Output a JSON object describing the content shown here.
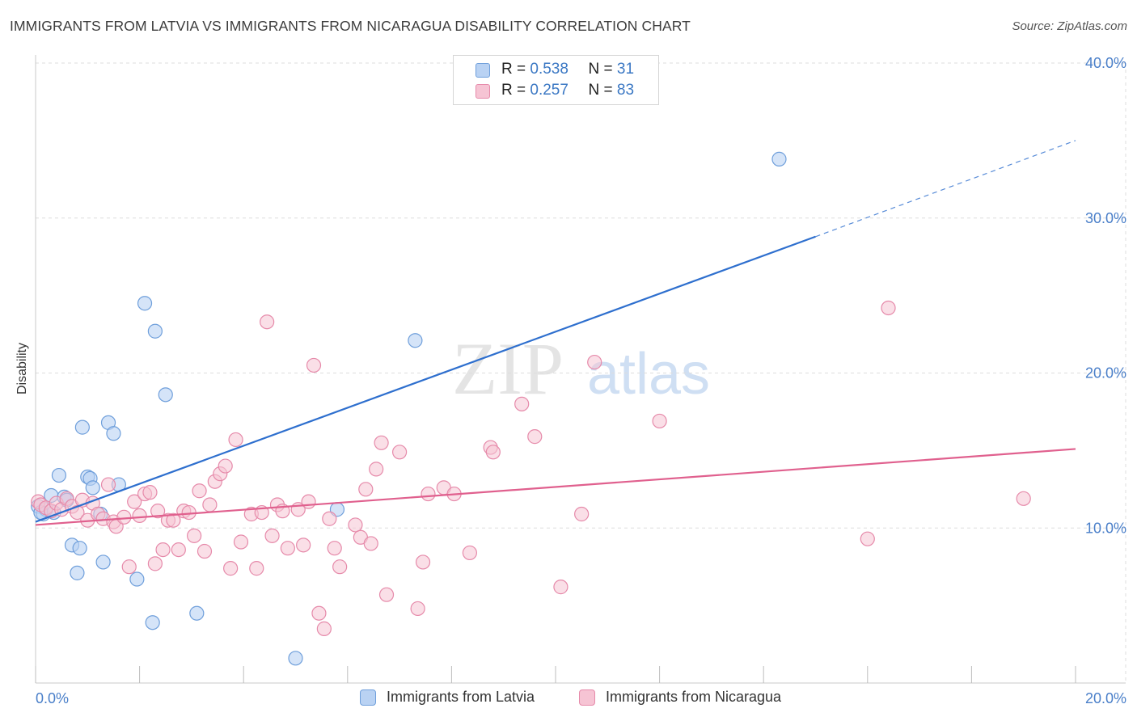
{
  "title": "IMMIGRANTS FROM LATVIA VS IMMIGRANTS FROM NICARAGUA DISABILITY CORRELATION CHART",
  "source": "Source: ZipAtlas.com",
  "watermark": {
    "zip": "ZIP",
    "atlas": "atlas"
  },
  "stats": [
    {
      "r_label": "R =",
      "r_value": "0.538",
      "n_label": "N =",
      "n_value": "31"
    },
    {
      "r_label": "R =",
      "r_value": "0.257",
      "n_label": "N =",
      "n_value": "83"
    }
  ],
  "legend": [
    {
      "label": "Immigrants from Latvia"
    },
    {
      "label": "Immigrants from Nicaragua"
    }
  ],
  "colors": {
    "latvia_fill": "#b9d2f3",
    "latvia_stroke": "#6f9fdb",
    "latvia_line": "#2e6fce",
    "nicaragua_fill": "#f6c4d4",
    "nicaragua_stroke": "#e68aaa",
    "nicaragua_line": "#e0608e",
    "tick_label": "#4a7fc9",
    "grid": "#dddddd"
  },
  "chart_data": {
    "type": "scatter",
    "title": "IMMIGRANTS FROM LATVIA VS IMMIGRANTS FROM NICARAGUA DISABILITY CORRELATION CHART",
    "xlabel": "",
    "ylabel": "Disability",
    "xlim": [
      0,
      20
    ],
    "ylim": [
      0,
      40
    ],
    "x_tick_labels": [
      "0.0%",
      "20.0%"
    ],
    "y_ticks": [
      10,
      20,
      30,
      40
    ],
    "y_tick_labels": [
      "10.0%",
      "20.0%",
      "30.0%",
      "40.0%"
    ],
    "grid": true,
    "series": [
      {
        "name": "Immigrants from Latvia",
        "points": [
          [
            0.05,
            11.4
          ],
          [
            0.15,
            10.9
          ],
          [
            0.2,
            11.2
          ],
          [
            0.3,
            12.1
          ],
          [
            0.35,
            11.0
          ],
          [
            0.45,
            13.4
          ],
          [
            0.55,
            12.0
          ],
          [
            0.6,
            11.8
          ],
          [
            0.7,
            8.9
          ],
          [
            0.8,
            7.1
          ],
          [
            0.85,
            8.7
          ],
          [
            0.9,
            16.5
          ],
          [
            1.0,
            13.3
          ],
          [
            1.05,
            13.2
          ],
          [
            1.1,
            12.6
          ],
          [
            1.25,
            10.9
          ],
          [
            1.3,
            7.8
          ],
          [
            1.4,
            16.8
          ],
          [
            1.5,
            16.1
          ],
          [
            1.6,
            12.8
          ],
          [
            1.95,
            6.7
          ],
          [
            2.1,
            24.5
          ],
          [
            2.25,
            3.9
          ],
          [
            2.3,
            22.7
          ],
          [
            2.5,
            18.6
          ],
          [
            3.1,
            4.5
          ],
          [
            5.0,
            1.6
          ],
          [
            5.8,
            11.2
          ],
          [
            7.3,
            22.1
          ],
          [
            14.3,
            33.8
          ],
          [
            0.1,
            11.0
          ]
        ],
        "trend": {
          "x0": 0,
          "y0": 10.4,
          "x1": 15.0,
          "y1": 28.8,
          "dash_to_x": 20,
          "dash_to_y": 35.0
        }
      },
      {
        "name": "Immigrants from Nicaragua",
        "points": [
          [
            0.05,
            11.7
          ],
          [
            0.1,
            11.5
          ],
          [
            0.2,
            11.3
          ],
          [
            0.3,
            11.1
          ],
          [
            0.4,
            11.6
          ],
          [
            0.5,
            11.2
          ],
          [
            0.6,
            11.9
          ],
          [
            0.7,
            11.4
          ],
          [
            0.8,
            11.0
          ],
          [
            0.9,
            11.8
          ],
          [
            1.0,
            10.5
          ],
          [
            1.1,
            11.6
          ],
          [
            1.2,
            10.9
          ],
          [
            1.3,
            10.6
          ],
          [
            1.4,
            12.8
          ],
          [
            1.5,
            10.4
          ],
          [
            1.55,
            10.1
          ],
          [
            1.7,
            10.7
          ],
          [
            1.8,
            7.5
          ],
          [
            1.9,
            11.7
          ],
          [
            2.0,
            10.8
          ],
          [
            2.1,
            12.2
          ],
          [
            2.2,
            12.3
          ],
          [
            2.3,
            7.7
          ],
          [
            2.35,
            11.1
          ],
          [
            2.45,
            8.6
          ],
          [
            2.55,
            10.5
          ],
          [
            2.65,
            10.5
          ],
          [
            2.75,
            8.6
          ],
          [
            2.85,
            11.1
          ],
          [
            2.95,
            11.0
          ],
          [
            3.05,
            9.5
          ],
          [
            3.15,
            12.4
          ],
          [
            3.25,
            8.5
          ],
          [
            3.35,
            11.5
          ],
          [
            3.45,
            13.0
          ],
          [
            3.55,
            13.5
          ],
          [
            3.65,
            14.0
          ],
          [
            3.75,
            7.4
          ],
          [
            3.85,
            15.7
          ],
          [
            3.95,
            9.1
          ],
          [
            4.15,
            10.9
          ],
          [
            4.25,
            7.4
          ],
          [
            4.35,
            11.0
          ],
          [
            4.45,
            23.3
          ],
          [
            4.55,
            9.5
          ],
          [
            4.65,
            11.5
          ],
          [
            4.75,
            11.1
          ],
          [
            4.85,
            8.7
          ],
          [
            5.05,
            11.2
          ],
          [
            5.15,
            8.9
          ],
          [
            5.25,
            11.7
          ],
          [
            5.35,
            20.5
          ],
          [
            5.45,
            4.5
          ],
          [
            5.55,
            3.5
          ],
          [
            5.65,
            10.6
          ],
          [
            5.75,
            8.7
          ],
          [
            5.85,
            7.5
          ],
          [
            6.15,
            10.2
          ],
          [
            6.25,
            9.4
          ],
          [
            6.35,
            12.5
          ],
          [
            6.45,
            9.0
          ],
          [
            6.55,
            13.8
          ],
          [
            6.65,
            15.5
          ],
          [
            6.75,
            5.7
          ],
          [
            7.0,
            14.9
          ],
          [
            7.35,
            4.8
          ],
          [
            7.45,
            7.8
          ],
          [
            7.55,
            12.2
          ],
          [
            7.85,
            12.6
          ],
          [
            8.05,
            12.2
          ],
          [
            8.35,
            8.4
          ],
          [
            8.75,
            15.2
          ],
          [
            8.8,
            14.9
          ],
          [
            9.35,
            18.0
          ],
          [
            9.6,
            15.9
          ],
          [
            10.1,
            6.2
          ],
          [
            10.5,
            10.9
          ],
          [
            10.75,
            20.7
          ],
          [
            12.0,
            16.9
          ],
          [
            16.0,
            9.3
          ],
          [
            16.4,
            24.2
          ],
          [
            19.0,
            11.9
          ]
        ],
        "trend": {
          "x0": 0,
          "y0": 10.2,
          "x1": 20,
          "y1": 15.1
        }
      }
    ]
  }
}
